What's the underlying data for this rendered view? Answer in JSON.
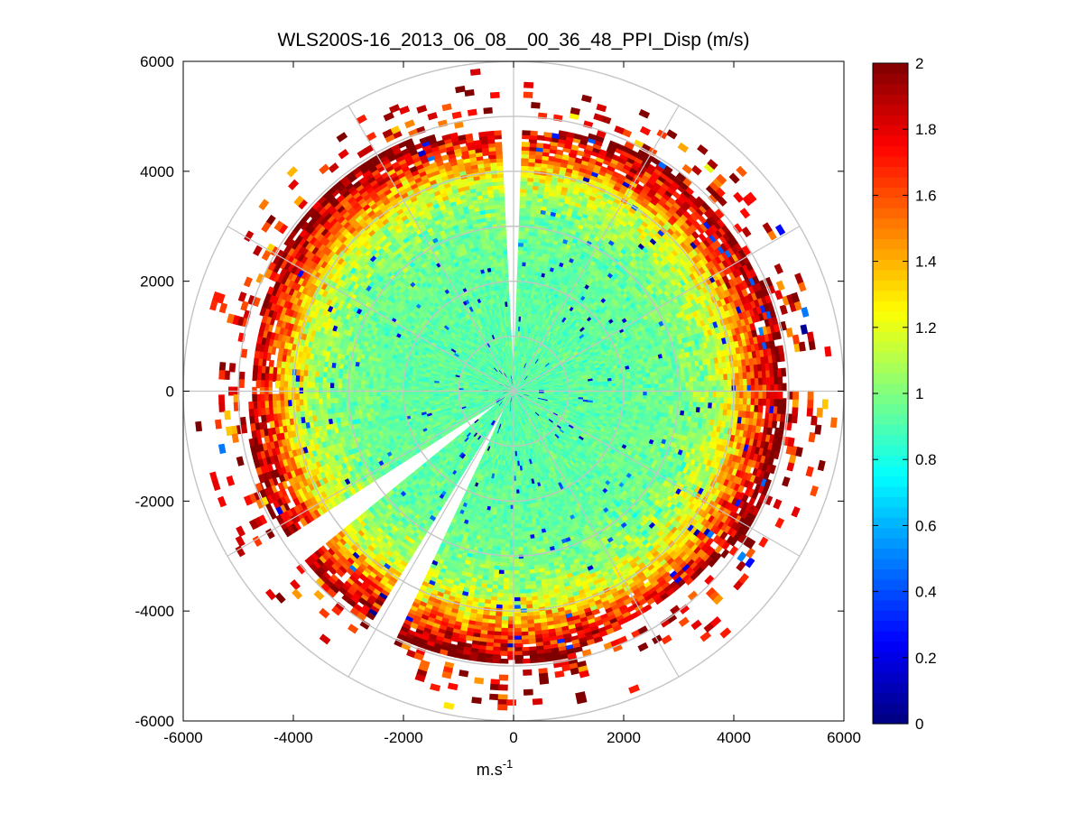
{
  "chart_data": {
    "type": "heatmap",
    "subtype": "polar-ppi",
    "title": "WLS200S-16_2013_06_08__00_36_48_PPI_Disp (m/s)",
    "xlabel": "m.s",
    "xlabel_sup": "-1",
    "ylabel": "",
    "xlim": [
      -6000,
      6000
    ],
    "ylim": [
      -6000,
      6000
    ],
    "xticks": [
      -6000,
      -4000,
      -2000,
      0,
      2000,
      4000,
      6000
    ],
    "yticks": [
      -6000,
      -4000,
      -2000,
      0,
      2000,
      4000,
      6000
    ],
    "x_tick_labels": [
      "-6000",
      "-4000",
      "-2000",
      "0",
      "2000",
      "4000",
      "6000"
    ],
    "y_tick_labels": [
      "-6000",
      "-4000",
      "-2000",
      "0",
      "2000",
      "4000",
      "6000"
    ],
    "polar_grid": {
      "rings": [
        1000,
        2000,
        3000,
        4000,
        5000,
        6000
      ],
      "spokes_deg": [
        0,
        30,
        60,
        90,
        120,
        150,
        180,
        210,
        240,
        270,
        300,
        330
      ]
    },
    "data_extent_m": 4900,
    "sparse_extent_m": 5900,
    "gaps_deg": [
      {
        "name": "north-gap",
        "from": 88,
        "to": 92
      },
      {
        "name": "south-west-gap",
        "from": 212,
        "to": 219
      },
      {
        "name": "south-west-gap-2",
        "from": 238,
        "to": 244
      }
    ],
    "dispersion_profile": {
      "range_m": [
        0,
        1000,
        2000,
        2500,
        3000,
        3500,
        4000,
        4400,
        4800
      ],
      "mean_value": [
        0.92,
        0.93,
        0.94,
        0.95,
        0.98,
        1.05,
        1.25,
        1.6,
        1.9
      ]
    },
    "colorbar": {
      "colormap": "jet",
      "clim": [
        0,
        2
      ],
      "ticks": [
        0,
        0.2,
        0.4,
        0.6,
        0.8,
        1,
        1.2,
        1.4,
        1.6,
        1.8,
        2
      ],
      "tick_labels": [
        "0",
        "0.2",
        "0.4",
        "0.6",
        "0.8",
        "1",
        "1.2",
        "1.4",
        "1.6",
        "1.8",
        "2"
      ],
      "levels": 64
    }
  }
}
